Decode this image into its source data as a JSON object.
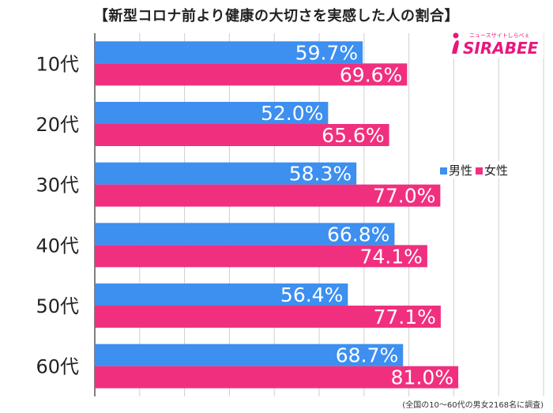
{
  "title": "【新型コロナ前より健康の大切さを実感した人の割合】",
  "logo": {
    "tagline": "ニュースサイトしらべぇ",
    "name": "SIRABEE"
  },
  "footnote": "(全国の10〜60代の男女2168名に調査)",
  "colors": {
    "male": "#3d8ff0",
    "female": "#f0307e",
    "grid": "#cfcfcf",
    "axis": "#555555",
    "logo": "#e8177d"
  },
  "chart_data": {
    "type": "bar",
    "orientation": "horizontal",
    "categories": [
      "10代",
      "20代",
      "30代",
      "40代",
      "50代",
      "60代"
    ],
    "series": [
      {
        "name": "男性",
        "values": [
          59.7,
          52.0,
          58.3,
          66.8,
          56.4,
          68.7
        ]
      },
      {
        "name": "女性",
        "values": [
          69.6,
          65.6,
          77.0,
          74.1,
          77.1,
          81.0
        ]
      }
    ],
    "value_suffix": "%",
    "xlim": [
      0,
      100
    ],
    "grid": true,
    "legend_position": "right"
  }
}
